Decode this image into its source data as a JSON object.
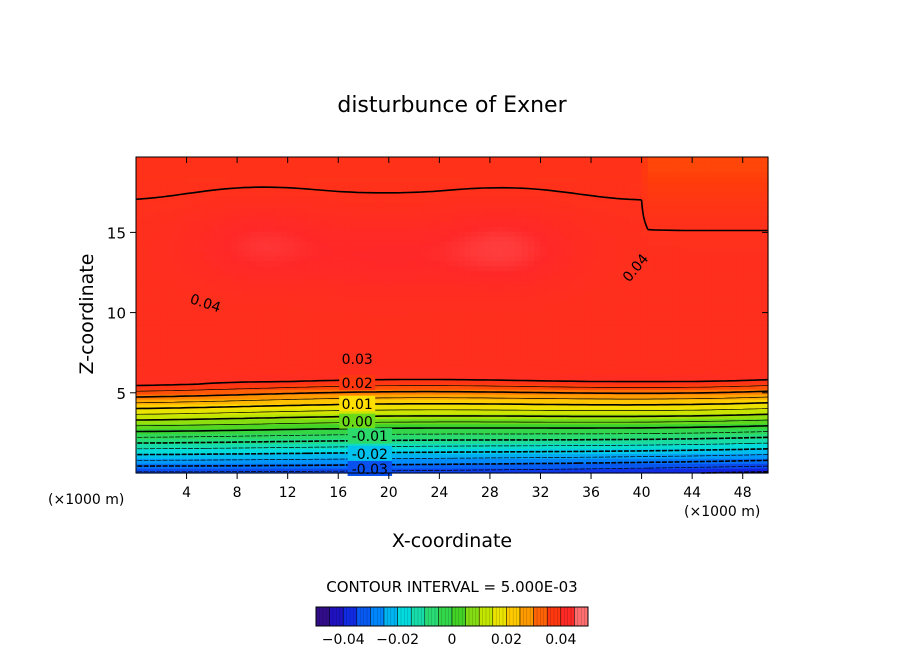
{
  "chart_data": {
    "type": "heatmap",
    "subtype": "filled-contour",
    "title": "disturbunce of Exner",
    "xlabel": "X-coordinate",
    "ylabel": "Z-coordinate",
    "x_unit_left": "(×1000 m)",
    "x_unit_right": "(×1000 m)",
    "xlim": [
      0,
      50
    ],
    "ylim": [
      0,
      19.7
    ],
    "x_ticks": [
      4,
      8,
      12,
      16,
      20,
      24,
      28,
      32,
      36,
      40,
      44,
      48
    ],
    "y_ticks": [
      5,
      10,
      15
    ],
    "contour_interval_text": "CONTOUR INTERVAL = 5.000E-03",
    "contour_interval": 0.005,
    "contour_labels": [
      {
        "text": "0.04",
        "x": 5.5,
        "z": 10.6
      },
      {
        "text": "0.04",
        "x": 39.5,
        "z": 12.8
      },
      {
        "text": "0.03",
        "x": 17.5,
        "z": 7.1
      },
      {
        "text": "0.02",
        "x": 17.5,
        "z": 5.6
      },
      {
        "text": "0.01",
        "x": 17.5,
        "z": 4.3
      },
      {
        "text": "0.00",
        "x": 17.5,
        "z": 3.2
      },
      {
        "text": "-0.01",
        "x": 18.5,
        "z": 2.3
      },
      {
        "text": "-0.02",
        "x": 18.5,
        "z": 1.2
      },
      {
        "text": "-0.03",
        "x": 18.5,
        "z": 0.25
      }
    ],
    "colorbar": {
      "min": -0.05,
      "max": 0.05,
      "ticks": [
        -0.04,
        -0.02,
        0,
        0.02,
        0.04
      ],
      "tick_labels": [
        "−0.04",
        "−0.02",
        "0",
        "0.02",
        "0.04"
      ]
    },
    "value_model": {
      "surface_value": -0.036,
      "surface_value_at_x_max": -0.041,
      "vertical_gradient_per_km": 0.0136,
      "ceiling_value": 0.042,
      "blob_centers": [
        {
          "x": 10,
          "z": 14.2,
          "amplitude": 0.0032
        },
        {
          "x": 29,
          "z": 14.0,
          "amplitude": 0.0038
        },
        {
          "x": 19.5,
          "z": 13.5,
          "amplitude": 0.0022
        }
      ]
    }
  }
}
